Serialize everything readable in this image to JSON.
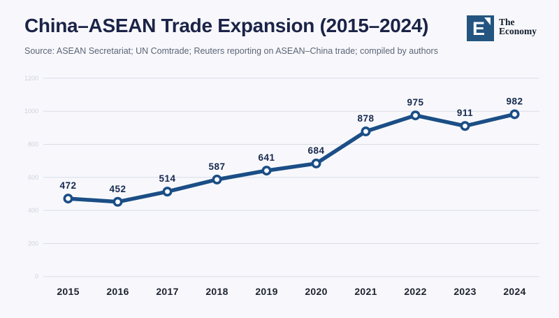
{
  "header": {
    "title": "China–ASEAN Trade Expansion (2015–2024)",
    "source": "Source: ASEAN Secretariat; UN Comtrade; Reuters reporting on ASEAN–China trade; compiled by authors",
    "logo": {
      "letter": "E",
      "name_line1": "The",
      "name_line2": "Economy"
    }
  },
  "colors": {
    "background": "#f8f8fc",
    "title": "#1b2347",
    "source": "#5b6476",
    "line": "#1b4e86",
    "marker_fill": "#ffffff",
    "grid": "#d9dce6",
    "tick_label": "#ced2de",
    "data_label": "#16294e",
    "axis_label": "#1d2330",
    "logo_bg": "#235580"
  },
  "chart_data": {
    "type": "line",
    "x": [
      2015,
      2016,
      2017,
      2018,
      2019,
      2020,
      2021,
      2022,
      2023,
      2024
    ],
    "values": [
      472,
      452,
      514,
      587,
      641,
      684,
      878,
      975,
      911,
      982
    ],
    "title": "China–ASEAN Trade Expansion (2015–2024)",
    "xlabel": "",
    "ylabel": "",
    "ylim": [
      0,
      1200
    ],
    "yticks": [
      0,
      200,
      400,
      600,
      800,
      1000,
      1200
    ],
    "grid": true,
    "legend": false,
    "data_labels_shown": true
  }
}
